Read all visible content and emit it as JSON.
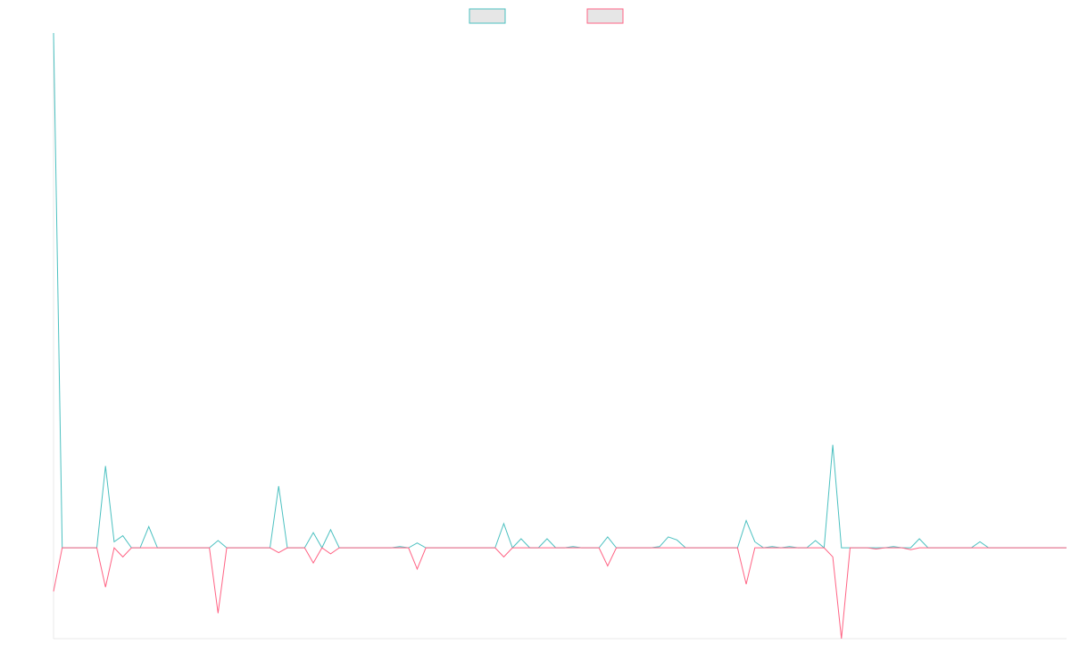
{
  "chart_data": {
    "type": "line",
    "title": "",
    "xlabel": "",
    "ylabel": "",
    "legend_position": "top-center",
    "grid": false,
    "x_count": 118,
    "ylim": [
      -0.15,
      0.85
    ],
    "series": [
      {
        "color": "#4bc0c0",
        "fill": "#e6e6e6",
        "points": [
          [
            0,
            0.85
          ],
          [
            6,
            0.135
          ],
          [
            7,
            0.01
          ],
          [
            8,
            0.02
          ],
          [
            9,
            0.0
          ],
          [
            11,
            0.035
          ],
          [
            19,
            0.012
          ],
          [
            26,
            0.102
          ],
          [
            30,
            0.025
          ],
          [
            31,
            0.0
          ],
          [
            32,
            0.03
          ],
          [
            40,
            0.002
          ],
          [
            42,
            0.008
          ],
          [
            52,
            0.04
          ],
          [
            54,
            0.015
          ],
          [
            57,
            0.015
          ],
          [
            60,
            0.002
          ],
          [
            64,
            0.018
          ],
          [
            69,
            0.0
          ],
          [
            70,
            0.002
          ],
          [
            71,
            0.018
          ],
          [
            72,
            0.013
          ],
          [
            75,
            0.0
          ],
          [
            76,
            0.0
          ],
          [
            77,
            0.0
          ],
          [
            80,
            0.045
          ],
          [
            81,
            0.01
          ],
          [
            83,
            0.002
          ],
          [
            85,
            0.002
          ],
          [
            88,
            0.012
          ],
          [
            90,
            0.17
          ],
          [
            97,
            0.002
          ],
          [
            100,
            0.015
          ],
          [
            107,
            0.01
          ],
          [
            115,
            0.0
          ]
        ]
      },
      {
        "color": "#ff6384",
        "fill": "#e6e6e6",
        "points": [
          [
            0,
            -0.072
          ],
          [
            6,
            -0.065
          ],
          [
            8,
            -0.015
          ],
          [
            19,
            -0.108
          ],
          [
            26,
            -0.008
          ],
          [
            30,
            -0.025
          ],
          [
            32,
            -0.01
          ],
          [
            42,
            -0.035
          ],
          [
            52,
            -0.015
          ],
          [
            64,
            -0.03
          ],
          [
            80,
            -0.06
          ],
          [
            90,
            -0.015
          ],
          [
            91,
            -0.15
          ],
          [
            95,
            -0.002
          ],
          [
            99,
            -0.003
          ]
        ]
      }
    ]
  }
}
